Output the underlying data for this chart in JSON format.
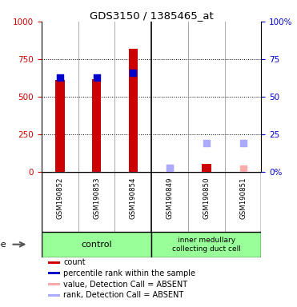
{
  "title": "GDS3150 / 1385465_at",
  "samples": [
    "GSM190852",
    "GSM190853",
    "GSM190854",
    "GSM190849",
    "GSM190850",
    "GSM190851"
  ],
  "left_ylim": [
    0,
    1000
  ],
  "right_ylim": [
    0,
    100
  ],
  "left_yticks": [
    0,
    250,
    500,
    750,
    1000
  ],
  "right_yticks": [
    0,
    25,
    50,
    75,
    100
  ],
  "left_yticklabels": [
    "0",
    "250",
    "500",
    "750",
    "1000"
  ],
  "right_yticklabels": [
    "0%",
    "25",
    "50",
    "75",
    "100%"
  ],
  "red_bars": [
    610,
    615,
    820,
    0,
    55,
    0
  ],
  "blue_dots_left": [
    630,
    630,
    660,
    0,
    0,
    0
  ],
  "absent_red_dots": [
    0,
    0,
    0,
    30,
    0,
    25
  ],
  "absent_blue_dots": [
    0,
    0,
    0,
    30,
    190,
    190
  ],
  "has_red_bar": [
    true,
    true,
    true,
    false,
    true,
    false
  ],
  "has_blue_dot": [
    true,
    true,
    true,
    false,
    false,
    false
  ],
  "has_absent_red": [
    false,
    false,
    false,
    true,
    false,
    true
  ],
  "has_absent_blue": [
    false,
    false,
    false,
    true,
    true,
    true
  ],
  "bar_color_red": "#cc0000",
  "bar_color_blue": "#0000cc",
  "bar_color_absent_red": "#ffaaaa",
  "bar_color_absent_blue": "#aaaaff",
  "left_label_color": "#cc0000",
  "right_label_color": "#0000cc",
  "sample_area_bg": "#cccccc",
  "control_bg": "#99ff99",
  "imcd_bg": "#99ff99",
  "legend_items": [
    {
      "label": "count",
      "color": "#cc0000"
    },
    {
      "label": "percentile rank within the sample",
      "color": "#0000cc"
    },
    {
      "label": "value, Detection Call = ABSENT",
      "color": "#ffaaaa"
    },
    {
      "label": "rank, Detection Call = ABSENT",
      "color": "#aaaaff"
    }
  ]
}
